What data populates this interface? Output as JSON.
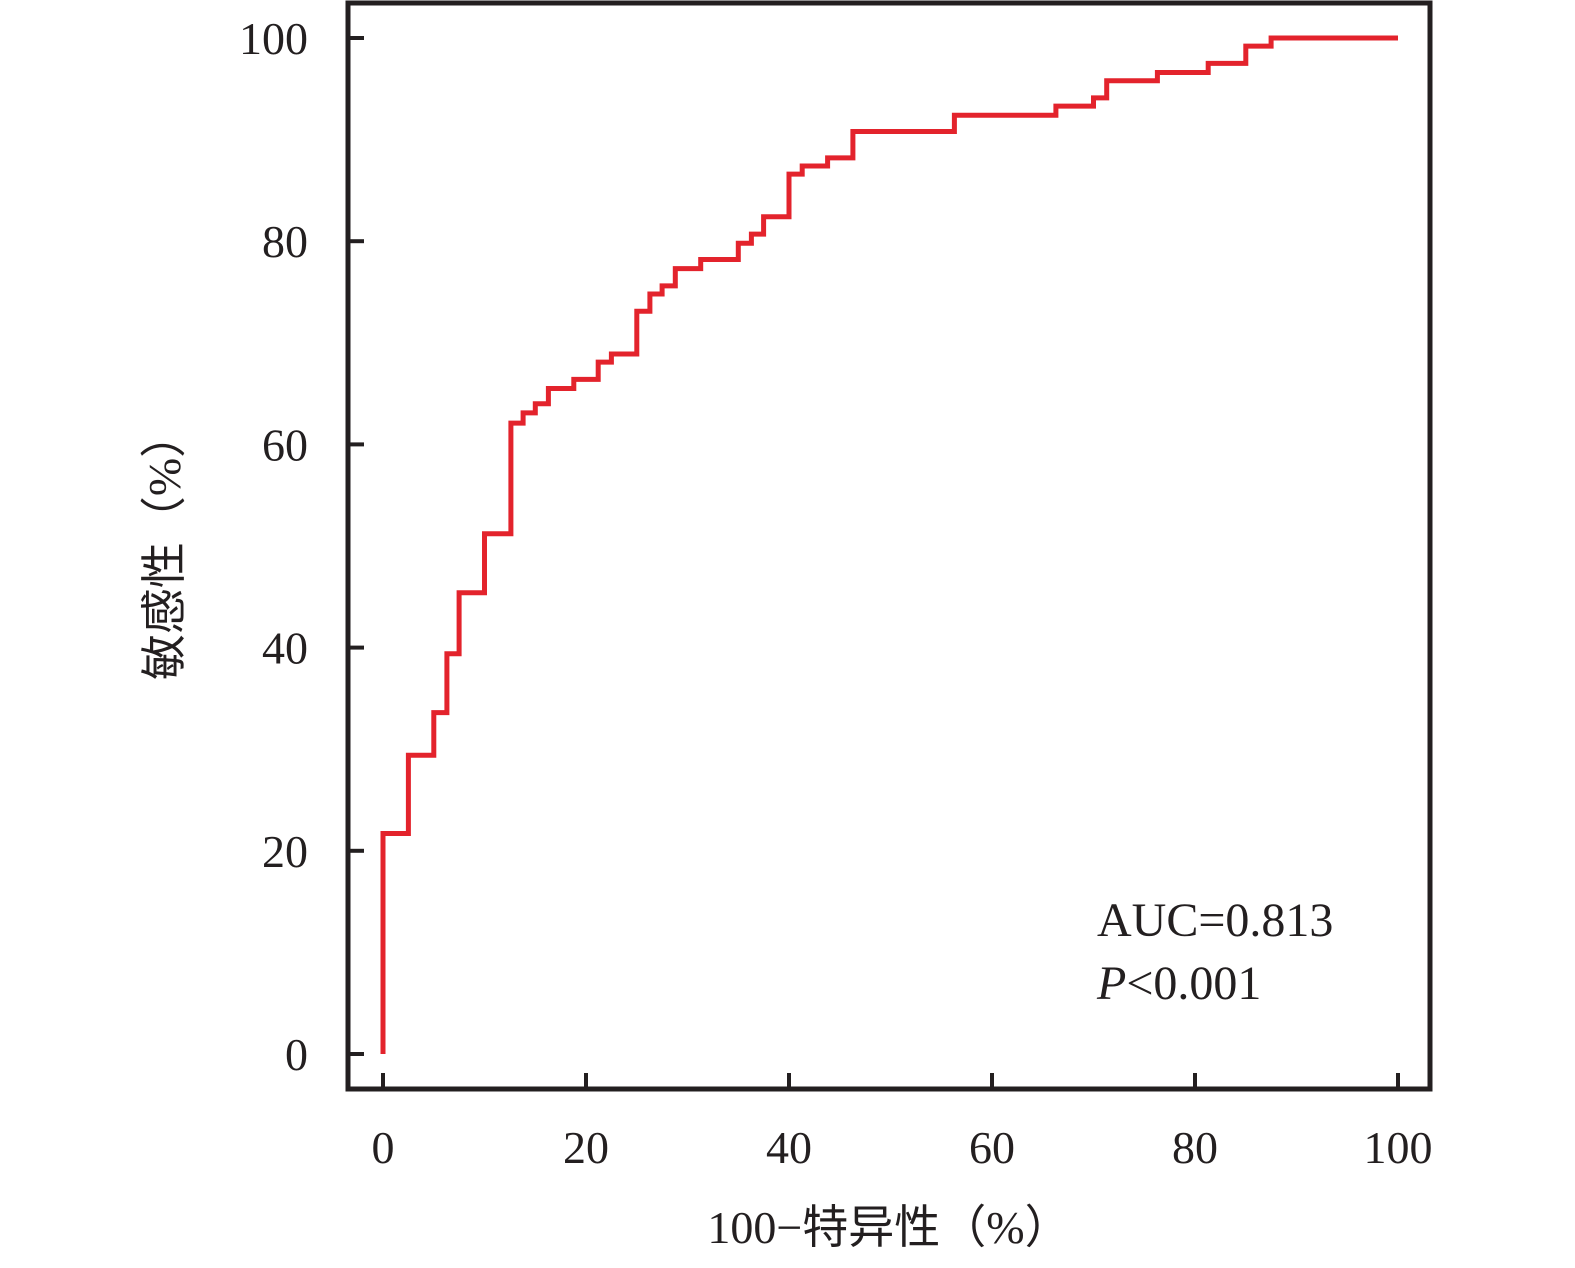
{
  "chart_data": {
    "type": "line",
    "step": true,
    "xlabel": "100−特异性（%）",
    "ylabel": "敏感性（%）",
    "xlim": [
      0,
      100
    ],
    "ylim": [
      0,
      100
    ],
    "xticks": [
      0,
      20,
      40,
      60,
      80,
      100
    ],
    "yticks": [
      0,
      20,
      40,
      60,
      80,
      100
    ],
    "grid": false,
    "line_color": "#e3232c",
    "annotation": {
      "auc": "AUC=0.813",
      "p_italic": "P",
      "p_rest": "<0.001"
    },
    "series": [
      {
        "x": [
          0,
          0,
          2.5,
          2.5,
          5,
          5,
          6.3,
          6.3,
          7.5,
          7.5,
          10,
          10,
          12.6,
          12.6,
          13.8,
          13.8,
          15,
          15,
          16.3,
          16.3,
          18.8,
          18.8,
          21.2,
          21.2,
          22.5,
          22.5,
          25,
          25,
          26.3,
          26.3,
          27.5,
          27.5,
          28.8,
          28.8,
          31.3,
          31.3,
          35,
          35,
          36.3,
          36.3,
          37.5,
          37.5,
          40,
          40,
          41.3,
          41.3,
          43.8,
          43.8,
          46.3,
          46.3,
          56.3,
          56.3,
          66.3,
          66.3,
          70,
          70,
          71.3,
          71.3,
          76.3,
          76.3,
          81.3,
          81.3,
          85,
          85,
          87.5,
          87.5,
          100
        ],
        "y": [
          0,
          21.7,
          21.7,
          29.4,
          29.4,
          33.6,
          33.6,
          39.4,
          39.4,
          45.4,
          45.4,
          51.2,
          51.2,
          62.1,
          62.1,
          63.1,
          63.1,
          64,
          64,
          65.5,
          65.5,
          66.4,
          66.4,
          68.1,
          68.1,
          68.9,
          68.9,
          73.1,
          73.1,
          74.8,
          74.8,
          75.6,
          75.6,
          77.3,
          77.3,
          78.2,
          78.2,
          79.8,
          79.8,
          80.7,
          80.7,
          82.4,
          82.4,
          86.6,
          86.6,
          87.4,
          87.4,
          88.2,
          88.2,
          90.8,
          90.8,
          92.4,
          92.4,
          93.3,
          93.3,
          94.1,
          94.1,
          95.8,
          95.8,
          96.6,
          96.6,
          97.5,
          97.5,
          99.2,
          99.2,
          100,
          100
        ]
      }
    ]
  }
}
